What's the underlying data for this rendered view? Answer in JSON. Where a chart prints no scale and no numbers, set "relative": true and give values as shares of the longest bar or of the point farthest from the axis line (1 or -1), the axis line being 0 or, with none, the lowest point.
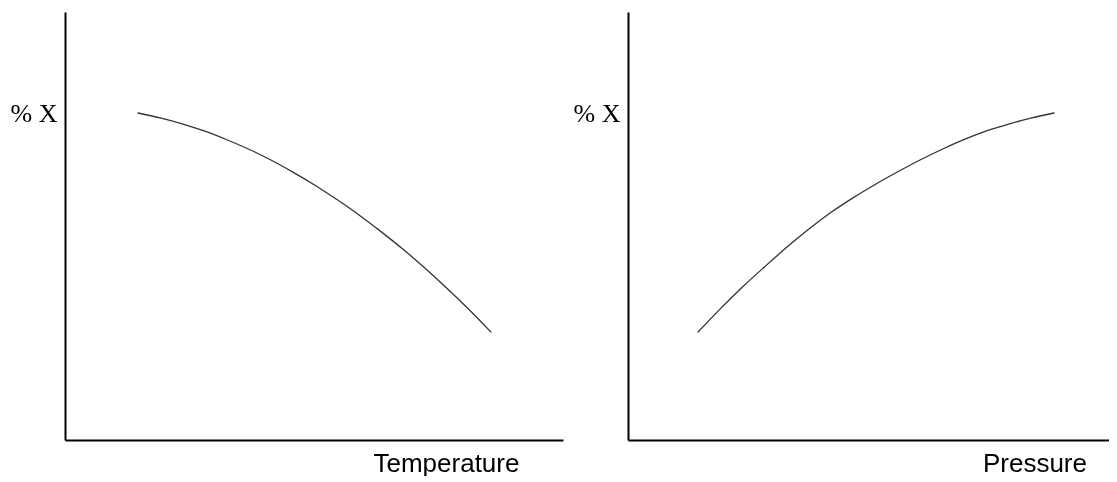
{
  "chart_data": [
    {
      "type": "line",
      "relative": true,
      "ylabel": "% X",
      "xlabel": "Temperature",
      "categories": [
        null,
        null,
        null,
        null,
        null,
        null,
        null,
        null,
        null,
        null,
        null,
        null,
        null,
        null,
        null,
        null,
        null
      ],
      "values": [
        1,
        0.985,
        0.967,
        0.945,
        0.919,
        0.89,
        0.857,
        0.82,
        0.78,
        0.736,
        0.689,
        0.638,
        0.584,
        0.526,
        0.464,
        0.399,
        0.33
      ],
      "color": "#333333"
    },
    {
      "type": "line",
      "relative": true,
      "ylabel": "% X",
      "xlabel": "Pressure",
      "categories": [
        null,
        null,
        null,
        null,
        null,
        null,
        null,
        null,
        null,
        null,
        null,
        null,
        null,
        null,
        null,
        null,
        null
      ],
      "values": [
        0.33,
        0.401,
        0.468,
        0.53,
        0.59,
        0.646,
        0.697,
        0.742,
        0.783,
        0.821,
        0.857,
        0.89,
        0.92,
        0.946,
        0.967,
        0.985,
        1
      ],
      "color": "#333333"
    }
  ]
}
